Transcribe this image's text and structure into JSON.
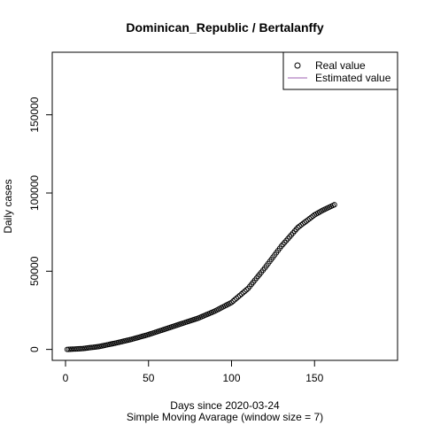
{
  "chart_data": {
    "type": "scatter",
    "title": "Dominican_Republic / Bertalanffy",
    "xlabel": "Days since 2020-03-24",
    "subtitle": "Simple Moving Avarage (window size = 7)",
    "ylabel": "Daily cases",
    "xlim": [
      -8,
      200
    ],
    "ylim": [
      -7000,
      190000
    ],
    "x_ticks": [
      0,
      50,
      100,
      150
    ],
    "y_ticks": [
      0,
      50000,
      100000,
      150000
    ],
    "grid": false,
    "legend_position": "top-right",
    "legend": [
      {
        "label": "Real value",
        "symbol": "open-circle",
        "color": "#000000"
      },
      {
        "label": "Estimated value",
        "symbol": "line",
        "color": "#9E5FB0"
      }
    ],
    "series": [
      {
        "name": "Real value",
        "marker": "open-circle",
        "color": "#000000",
        "x": [
          1,
          10,
          20,
          30,
          40,
          50,
          60,
          70,
          80,
          90,
          100,
          110,
          120,
          130,
          140,
          150,
          155,
          160,
          162
        ],
        "y": [
          0,
          500,
          1800,
          4000,
          6500,
          9500,
          13000,
          16500,
          20000,
          24500,
          30000,
          39000,
          52000,
          66000,
          78000,
          86000,
          89000,
          91500,
          92500
        ]
      }
    ]
  }
}
